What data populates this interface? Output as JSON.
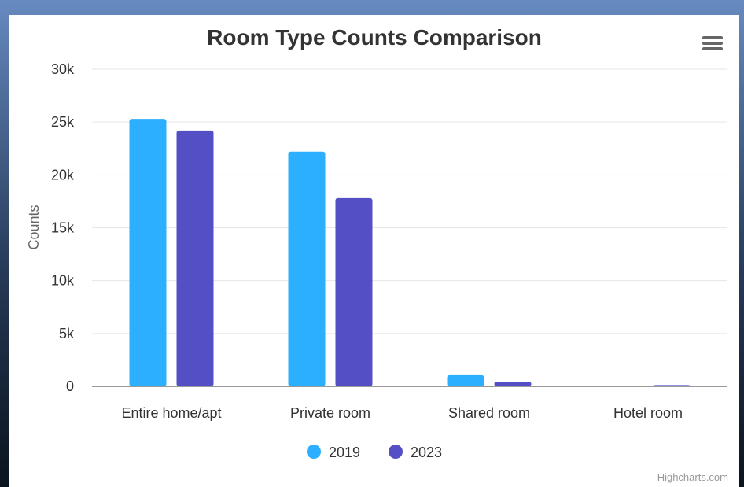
{
  "chart_data": {
    "type": "bar",
    "title": "Room Type Counts Comparison",
    "ylabel": "Counts",
    "xlabel": "",
    "categories": [
      "Entire home/apt",
      "Private room",
      "Shared room",
      "Hotel room"
    ],
    "series": [
      {
        "name": "2019",
        "values": [
          25300,
          22200,
          1050,
          0
        ],
        "color": "#2caffe"
      },
      {
        "name": "2023",
        "values": [
          24200,
          17800,
          450,
          120
        ],
        "color": "#544fc5"
      }
    ],
    "ylim": [
      0,
      30000
    ],
    "yticks": [
      0,
      5000,
      10000,
      15000,
      20000,
      25000,
      30000
    ],
    "ytick_labels": [
      "0",
      "5k",
      "10k",
      "15k",
      "20k",
      "25k",
      "30k"
    ],
    "grid": true,
    "legend_position": "bottom"
  },
  "credits": "Highcharts.com",
  "menu_icon": "hamburger-menu-icon",
  "colors": {
    "background": "#ffffff",
    "grid": "#e6e6e6",
    "axis": "#333333"
  }
}
